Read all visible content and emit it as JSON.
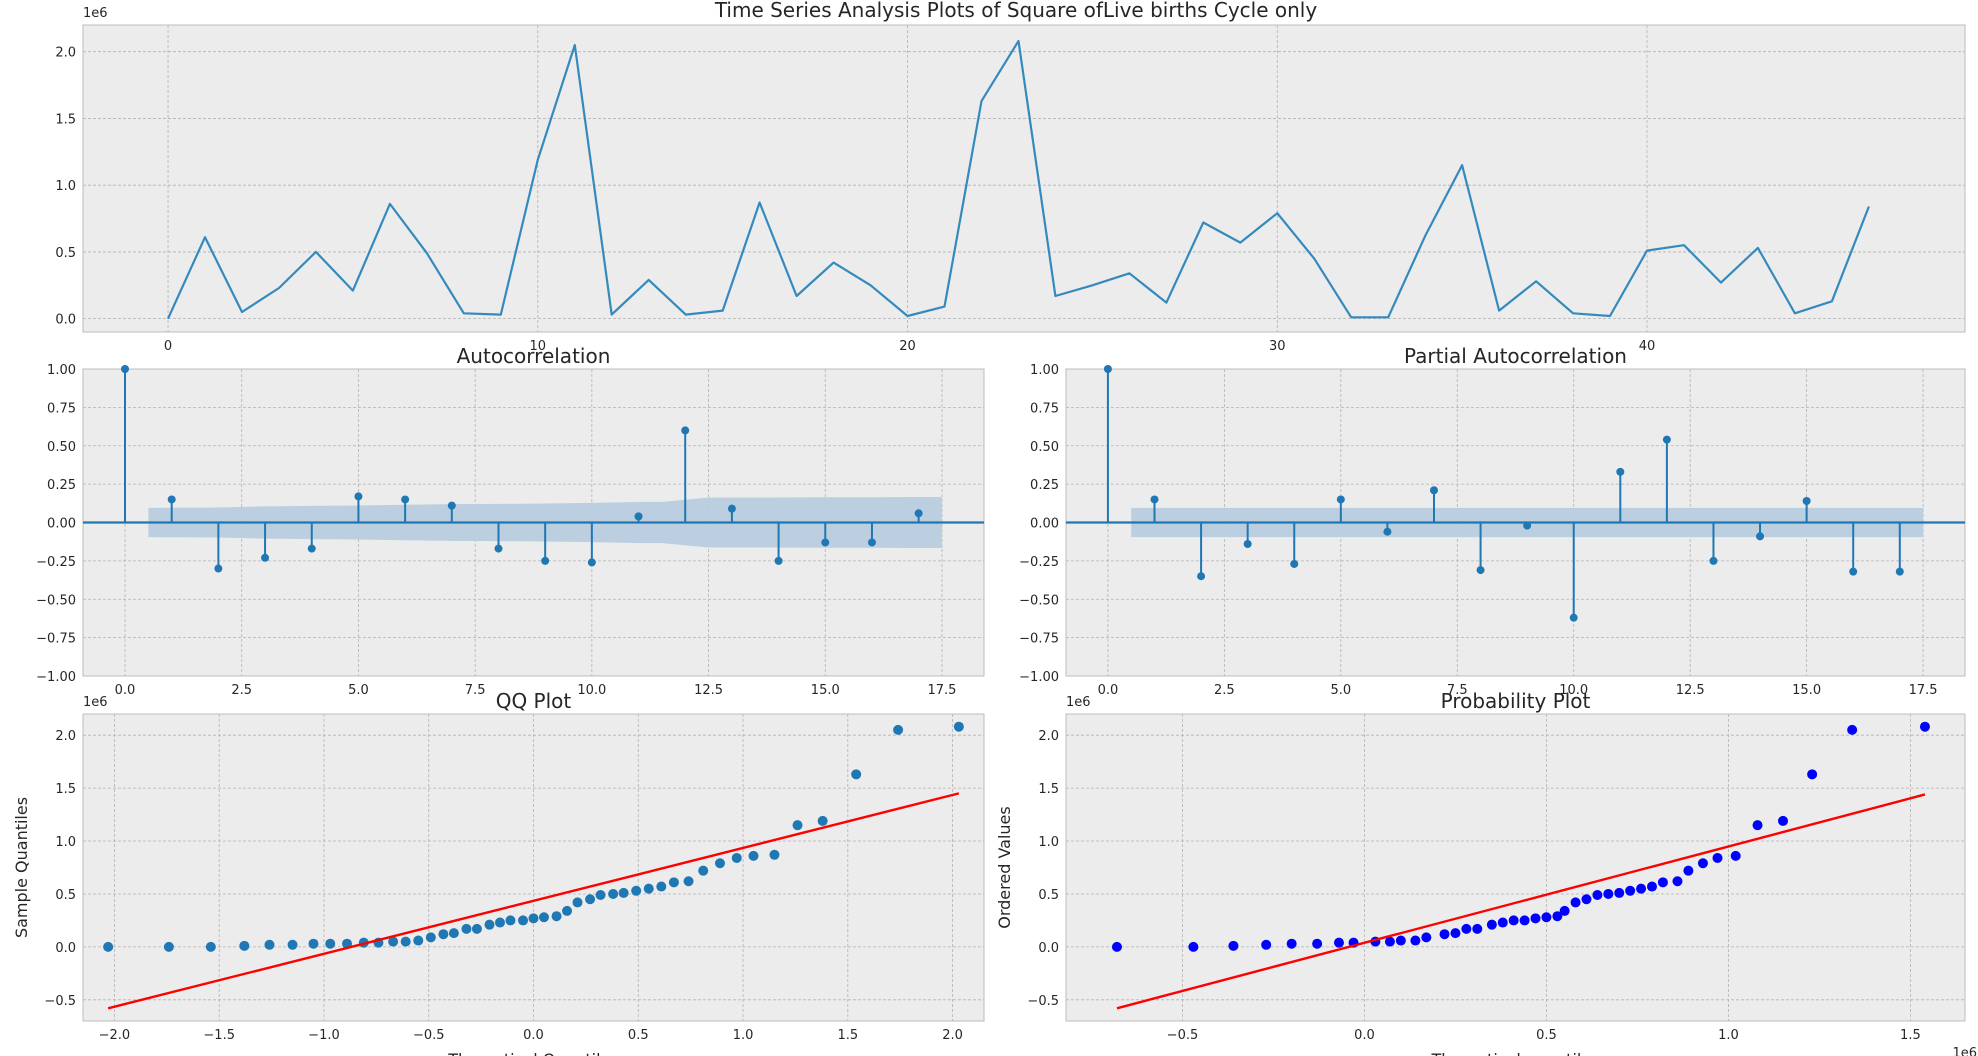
{
  "figure_title": "Time Series Analysis Plots of Square ofLive births Cycle only",
  "colors": {
    "axes_bg": "#ececec",
    "grid": "#b2b2b2",
    "series": "#348abd",
    "stem": "#1f77b4",
    "conf_band": "#b8cde0",
    "qq_points": "#1f77b4",
    "prob_points": "#0000ff",
    "fit_line": "#ff0000",
    "text": "#262626"
  },
  "chart_data": [
    {
      "id": "series",
      "type": "line",
      "title": "",
      "offset_text": "1e6",
      "xlim": [
        -2.3,
        48.6
      ],
      "ylim": [
        -0.1,
        2.2
      ],
      "x_ticks": [
        0,
        10,
        20,
        30,
        40
      ],
      "x_tick_labels": [
        "0",
        "10",
        "20",
        "30",
        "40"
      ],
      "y_ticks": [
        0.0,
        0.5,
        1.0,
        1.5,
        2.0
      ],
      "y_tick_labels": [
        "0.0",
        "0.5",
        "1.0",
        "1.5",
        "2.0"
      ],
      "grid": true,
      "x": [
        0,
        1,
        2,
        3,
        4,
        5,
        6,
        7,
        8,
        9,
        10,
        11,
        12,
        13,
        14,
        15,
        16,
        17,
        18,
        19,
        20,
        21,
        22,
        23,
        24,
        25,
        26,
        27,
        28,
        29,
        30,
        31,
        32,
        33,
        34,
        35,
        36,
        37,
        38,
        39,
        40,
        41,
        42,
        43,
        44,
        45,
        46
      ],
      "values": [
        0.0,
        0.61,
        0.05,
        0.23,
        0.5,
        0.21,
        0.86,
        0.49,
        0.04,
        0.03,
        1.19,
        2.05,
        0.03,
        0.29,
        0.03,
        0.06,
        0.87,
        0.17,
        0.42,
        0.25,
        0.02,
        0.09,
        1.63,
        2.08,
        0.17,
        0.25,
        0.34,
        0.12,
        0.72,
        0.57,
        0.79,
        0.45,
        0.01,
        0.01,
        0.62,
        1.15,
        0.06,
        0.28,
        0.04,
        0.02,
        0.51,
        0.55,
        0.27,
        0.53,
        0.04,
        0.13,
        0.84
      ]
    },
    {
      "id": "acf",
      "type": "stem",
      "title": "Autocorrelation",
      "xlim": [
        -0.9,
        18.4
      ],
      "ylim": [
        -1.0,
        1.0
      ],
      "x_ticks": [
        0,
        2.5,
        5,
        7.5,
        10,
        12.5,
        15,
        17.5
      ],
      "x_tick_labels": [
        "0.0",
        "2.5",
        "5.0",
        "7.5",
        "10.0",
        "12.5",
        "15.0",
        "17.5"
      ],
      "y_ticks": [
        -1.0,
        -0.75,
        -0.5,
        -0.25,
        0.0,
        0.25,
        0.5,
        0.75,
        1.0
      ],
      "y_tick_labels": [
        "−1.00",
        "−0.75",
        "−0.50",
        "−0.25",
        "0.00",
        "0.25",
        "0.50",
        "0.75",
        "1.00"
      ],
      "grid": true,
      "lags": [
        0,
        1,
        2,
        3,
        4,
        5,
        6,
        7,
        8,
        9,
        10,
        11,
        12,
        13,
        14,
        15,
        16,
        17
      ],
      "values": [
        1.0,
        0.15,
        -0.3,
        -0.23,
        -0.17,
        0.17,
        0.15,
        0.11,
        -0.17,
        -0.25,
        -0.26,
        0.04,
        0.6,
        0.09,
        -0.25,
        -0.13,
        -0.13,
        0.06
      ],
      "band_lags": [
        0.5,
        1,
        2,
        3,
        4,
        5,
        6,
        7,
        8,
        9,
        10,
        11,
        11.5,
        12.5,
        13,
        14,
        15,
        16,
        17,
        17.5
      ],
      "band_upper": [
        0.095,
        0.096,
        0.098,
        0.105,
        0.108,
        0.111,
        0.116,
        0.12,
        0.121,
        0.124,
        0.128,
        0.134,
        0.134,
        0.163,
        0.163,
        0.163,
        0.165,
        0.165,
        0.166,
        0.166
      ]
    },
    {
      "id": "pacf",
      "type": "stem",
      "title": "Partial Autocorrelation",
      "xlim": [
        -0.9,
        18.4
      ],
      "ylim": [
        -1.0,
        1.0
      ],
      "x_ticks": [
        0,
        2.5,
        5,
        7.5,
        10,
        12.5,
        15,
        17.5
      ],
      "x_tick_labels": [
        "0.0",
        "2.5",
        "5.0",
        "7.5",
        "10.0",
        "12.5",
        "15.0",
        "17.5"
      ],
      "y_ticks": [
        -1.0,
        -0.75,
        -0.5,
        -0.25,
        0.0,
        0.25,
        0.5,
        0.75,
        1.0
      ],
      "y_tick_labels": [
        "−1.00",
        "−0.75",
        "−0.50",
        "−0.25",
        "0.00",
        "0.25",
        "0.50",
        "0.75",
        "1.00"
      ],
      "grid": true,
      "lags": [
        0,
        1,
        2,
        3,
        4,
        5,
        6,
        7,
        8,
        9,
        10,
        11,
        12,
        13,
        14,
        15,
        16,
        17
      ],
      "values": [
        1.0,
        0.15,
        -0.35,
        -0.14,
        -0.27,
        0.15,
        -0.06,
        0.21,
        -0.31,
        -0.02,
        -0.62,
        0.33,
        0.54,
        -0.25,
        -0.09,
        0.14,
        -0.32,
        -0.32
      ],
      "band_lags": [
        0.5,
        17.5
      ],
      "band_upper": [
        0.095,
        0.095
      ]
    },
    {
      "id": "qq",
      "type": "scatter",
      "title": "QQ Plot",
      "offset_text": "1e6",
      "xlabel": "Theoretical Quantiles",
      "ylabel": "Sample Quantiles",
      "xlim": [
        -2.15,
        2.15
      ],
      "ylim": [
        -0.7,
        2.2
      ],
      "x_ticks": [
        -2.0,
        -1.5,
        -1.0,
        -0.5,
        0.0,
        0.5,
        1.0,
        1.5,
        2.0
      ],
      "x_tick_labels": [
        "−2.0",
        "−1.5",
        "−1.0",
        "−0.5",
        "0.0",
        "0.5",
        "1.0",
        "1.5",
        "2.0"
      ],
      "y_ticks": [
        -0.5,
        0.0,
        0.5,
        1.0,
        1.5,
        2.0
      ],
      "y_tick_labels": [
        "−0.5",
        "0.0",
        "0.5",
        "1.0",
        "1.5",
        "2.0"
      ],
      "grid": true,
      "x": [
        -2.03,
        -1.74,
        -1.54,
        -1.38,
        -1.26,
        -1.15,
        -1.05,
        -0.97,
        -0.89,
        -0.81,
        -0.74,
        -0.67,
        -0.61,
        -0.55,
        -0.49,
        -0.43,
        -0.38,
        -0.32,
        -0.27,
        -0.21,
        -0.16,
        -0.11,
        -0.05,
        0.0,
        0.05,
        0.11,
        0.16,
        0.21,
        0.27,
        0.32,
        0.38,
        0.43,
        0.49,
        0.55,
        0.61,
        0.67,
        0.74,
        0.81,
        0.89,
        0.97,
        1.05,
        1.15,
        1.26,
        1.38,
        1.54,
        1.74,
        2.03
      ],
      "y": [
        0.0,
        0.0,
        0.0,
        0.01,
        0.02,
        0.02,
        0.03,
        0.03,
        0.03,
        0.04,
        0.04,
        0.05,
        0.05,
        0.06,
        0.09,
        0.12,
        0.13,
        0.17,
        0.17,
        0.21,
        0.23,
        0.25,
        0.25,
        0.27,
        0.28,
        0.29,
        0.34,
        0.42,
        0.45,
        0.49,
        0.5,
        0.51,
        0.53,
        0.55,
        0.57,
        0.61,
        0.62,
        0.72,
        0.79,
        0.84,
        0.86,
        0.87,
        1.15,
        1.19,
        1.63,
        2.05,
        2.08
      ],
      "fit_x": [
        -2.03,
        2.03
      ],
      "fit_y": [
        -0.58,
        1.45
      ]
    },
    {
      "id": "prob",
      "type": "scatter",
      "title": "Probability Plot",
      "offset_text": "1e6",
      "x_offset_text": "1e6",
      "xlabel": "Theoretical quantiles",
      "ylabel": "Ordered Values",
      "xlim": [
        -0.82,
        1.65
      ],
      "ylim": [
        -0.7,
        2.2
      ],
      "x_ticks": [
        -0.5,
        0.0,
        0.5,
        1.0,
        1.5
      ],
      "x_tick_labels": [
        "−0.5",
        "0.0",
        "0.5",
        "1.0",
        "1.5"
      ],
      "y_ticks": [
        -0.5,
        0.0,
        0.5,
        1.0,
        1.5,
        2.0
      ],
      "y_tick_labels": [
        "−0.5",
        "0.0",
        "0.5",
        "1.0",
        "1.5",
        "2.0"
      ],
      "grid": true,
      "x": [
        -0.68,
        -0.47,
        -0.36,
        -0.27,
        -0.2,
        -0.13,
        -0.07,
        -0.03,
        0.03,
        0.07,
        0.1,
        0.14,
        0.17,
        0.22,
        0.25,
        0.28,
        0.31,
        0.35,
        0.38,
        0.41,
        0.44,
        0.47,
        0.5,
        0.53,
        0.55,
        0.58,
        0.61,
        0.64,
        0.67,
        0.7,
        0.73,
        0.76,
        0.79,
        0.82,
        0.86,
        0.89,
        0.93,
        0.97,
        1.02,
        1.08,
        1.15,
        1.23,
        1.34,
        1.54
      ],
      "y": [
        0.0,
        0.0,
        0.01,
        0.02,
        0.03,
        0.03,
        0.04,
        0.04,
        0.05,
        0.05,
        0.06,
        0.06,
        0.09,
        0.12,
        0.13,
        0.17,
        0.17,
        0.21,
        0.23,
        0.25,
        0.25,
        0.27,
        0.28,
        0.29,
        0.34,
        0.42,
        0.45,
        0.49,
        0.5,
        0.51,
        0.53,
        0.55,
        0.57,
        0.61,
        0.62,
        0.72,
        0.79,
        0.84,
        0.86,
        1.15,
        1.19,
        1.63,
        2.05,
        2.08
      ],
      "fit_x": [
        -0.68,
        1.54
      ],
      "fit_y": [
        -0.58,
        1.44
      ]
    }
  ]
}
